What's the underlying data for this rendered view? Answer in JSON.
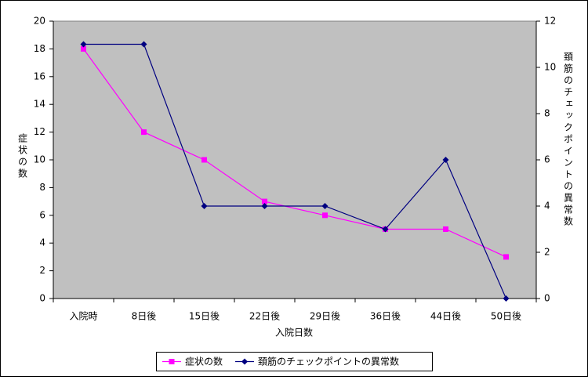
{
  "chart_data": {
    "type": "line",
    "categories": [
      "入院時",
      "8日後",
      "15日後",
      "22日後",
      "29日後",
      "36日後",
      "44日後",
      "50日後"
    ],
    "x_label": "入院日数",
    "y_label": "症状の数",
    "y2_label": "頚筋のチェックポイントの異常数",
    "ylim": [
      0,
      20
    ],
    "yticks": [
      0,
      2,
      4,
      6,
      8,
      10,
      12,
      14,
      16,
      18,
      20
    ],
    "y2lim": [
      0,
      12
    ],
    "y2ticks": [
      0,
      2,
      4,
      6,
      8,
      10,
      12
    ],
    "series": [
      {
        "name": "症状の数",
        "color": "#ff00ff",
        "marker": "square",
        "values": [
          18,
          12,
          10,
          7,
          6,
          5,
          5,
          3
        ]
      },
      {
        "name": "頚筋のチェックポイントの異常数",
        "color": "#000080",
        "marker": "diamond",
        "axis": "y2",
        "values": [
          11,
          11,
          4,
          4,
          4,
          3,
          6,
          0
        ]
      }
    ],
    "background": "#c0c0c0"
  }
}
